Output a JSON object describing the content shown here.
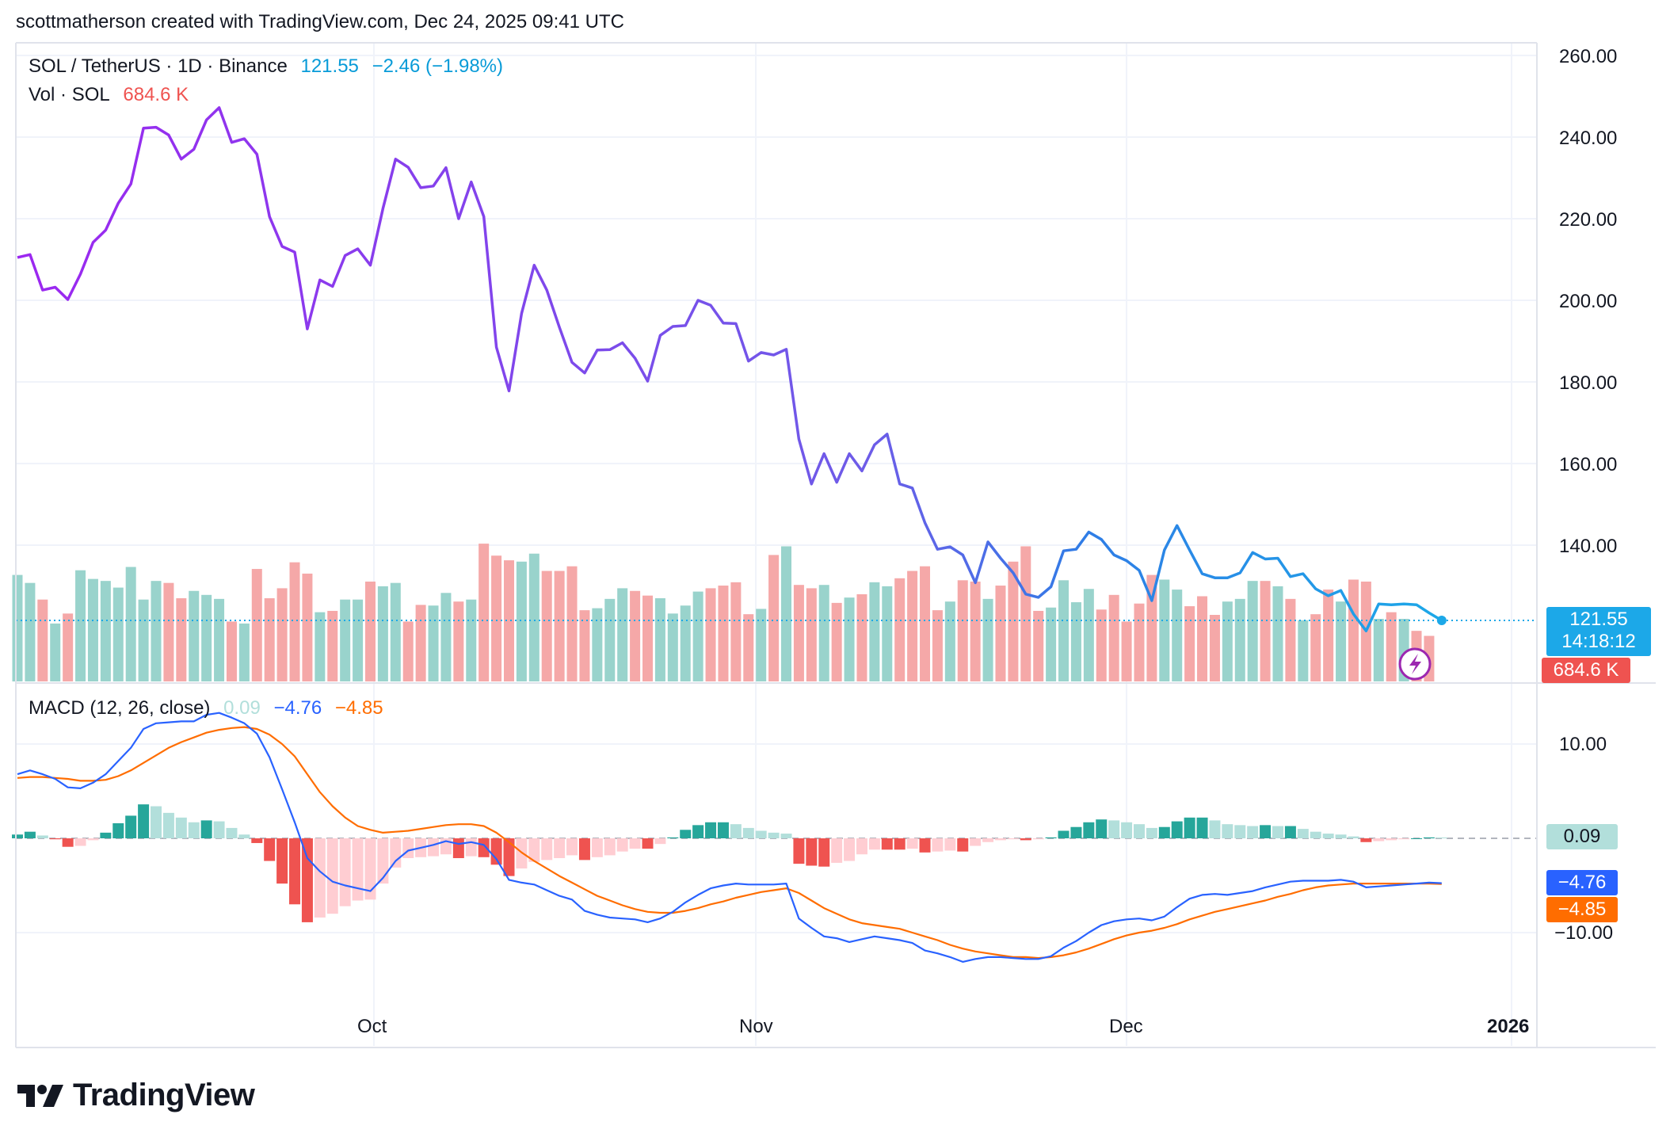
{
  "header": {
    "attribution": "scottmatherson created with TradingView.com, Dec 24, 2025 09:41 UTC"
  },
  "legend": {
    "symbol": "SOL / TetherUS · 1D · Binance",
    "last_price": "121.55",
    "change": "−2.46 (−1.98%)",
    "volume_label": "Vol · SOL",
    "volume_value": "684.6 K",
    "macd_label": "MACD (12, 26, close)",
    "macd_hist": "0.09",
    "macd_line": "−4.76",
    "macd_signal": "−4.85"
  },
  "price_axis": {
    "ticks": [
      "260.00",
      "240.00",
      "220.00",
      "200.00",
      "180.00",
      "160.00",
      "140.00"
    ],
    "price_tag": "121.55",
    "countdown": "14:18:12",
    "volume_tag": "684.6 K"
  },
  "macd_axis": {
    "ticks": [
      "10.00",
      "−10.00"
    ],
    "hist_tag": "0.09",
    "macd_tag": "−4.76",
    "signal_tag": "−4.85"
  },
  "time_axis": {
    "labels": [
      "Oct",
      "Nov",
      "Dec",
      "2026"
    ]
  },
  "colors": {
    "price_line_start": "#9c27f0",
    "price_line_end": "#2196f3",
    "volume_up": "#99d3cc",
    "volume_down": "#f5a8a8",
    "macd_line": "#2962ff",
    "signal_line": "#ff6d00",
    "hist_up_strong": "#26a69a",
    "hist_up_weak": "#b2dfdb",
    "hist_down_strong": "#ef5350",
    "hist_down_weak": "#ffcdd2",
    "price_tag_bg": "#1ca8e8",
    "volume_tag_bg": "#ef5350"
  },
  "footer": {
    "brand": "TradingView"
  },
  "chart_data": {
    "type": "line",
    "title": "SOL / TetherUS · 1D · Binance",
    "x_start": "2025-09-03",
    "x_end": "2025-12-24",
    "ylim": [
      120,
      260
    ],
    "close": [
      210.5,
      211.2,
      202.5,
      203.2,
      200.2,
      206.4,
      214.2,
      217.2,
      223.8,
      228.5,
      242.2,
      242.4,
      240.5,
      234.6,
      237.0,
      244.2,
      247.2,
      238.7,
      239.6,
      235.8,
      220.5,
      213.2,
      211.8,
      193.0,
      205.0,
      203.4,
      211.0,
      212.6,
      208.6,
      222.5,
      234.6,
      232.6,
      227.6,
      228.0,
      232.5,
      220.0,
      229.0,
      220.5,
      188.5,
      177.8,
      196.8,
      208.6,
      202.5,
      193.4,
      184.8,
      182.2,
      187.8,
      187.9,
      189.6,
      185.8,
      180.2,
      191.4,
      193.6,
      193.8,
      200.0,
      198.8,
      194.4,
      194.3,
      185.1,
      187.2,
      186.6,
      188.0,
      166.0,
      155.0,
      162.4,
      155.4,
      162.4,
      158.2,
      164.6,
      167.2,
      155.0,
      154.0,
      145.5,
      139.0,
      139.6,
      137.6,
      130.8,
      140.8,
      136.8,
      133.2,
      128.0,
      127.2,
      129.8,
      138.6,
      139.0,
      143.2,
      141.4,
      137.6,
      136.2,
      133.8,
      126.4,
      138.8,
      144.8,
      138.8,
      133.0,
      132.0,
      132.0,
      133.2,
      138.2,
      136.6,
      136.8,
      132.3,
      133.0,
      129.3,
      127.6,
      128.9,
      123.1,
      119.0,
      125.6,
      125.4,
      125.6,
      125.4,
      123.4,
      121.55
    ],
    "volume_k": [
      1600,
      1480,
      1230,
      870,
      1020,
      1670,
      1540,
      1510,
      1410,
      1720,
      1230,
      1510,
      1480,
      1250,
      1360,
      1300,
      1240,
      900,
      870,
      1690,
      1250,
      1400,
      1790,
      1620,
      1040,
      1060,
      1230,
      1230,
      1500,
      1430,
      1480,
      900,
      1150,
      1140,
      1330,
      1200,
      1230,
      2070,
      1890,
      1820,
      1800,
      1920,
      1660,
      1660,
      1730,
      1070,
      1100,
      1240,
      1400,
      1360,
      1290,
      1250,
      1020,
      1140,
      1350,
      1400,
      1440,
      1490,
      1010,
      1090,
      1900,
      2030,
      1450,
      1400,
      1450,
      1180,
      1260,
      1310,
      1490,
      1430,
      1550,
      1660,
      1730,
      1070,
      1200,
      1520,
      1500,
      1240,
      1440,
      1800,
      2030,
      1060,
      1110,
      1520,
      1190,
      1390,
      1080,
      1300,
      900,
      1170,
      1600,
      1530,
      1380,
      1130,
      1280,
      1000,
      1200,
      1240,
      1510,
      1510,
      1430,
      1240,
      920,
      1010,
      1380,
      1200,
      1530,
      1500,
      940,
      1040,
      940,
      760,
      684.6
    ],
    "series": [
      {
        "name": "MACD",
        "values": [
          6.8,
          7.2,
          6.8,
          6.3,
          5.4,
          5.3,
          5.9,
          6.8,
          8.2,
          9.6,
          11.6,
          12.2,
          12.3,
          12.4,
          12.4,
          13.1,
          13.3,
          12.8,
          12.2,
          11.1,
          8.6,
          5.2,
          1.7,
          -2.1,
          -3.5,
          -4.6,
          -5.0,
          -5.3,
          -5.6,
          -4.2,
          -2.4,
          -1.3,
          -1.0,
          -0.7,
          -0.3,
          -0.6,
          -0.4,
          -0.7,
          -2.2,
          -4.4,
          -4.7,
          -4.9,
          -5.5,
          -6.1,
          -6.5,
          -7.7,
          -8.1,
          -8.4,
          -8.5,
          -8.6,
          -8.9,
          -8.5,
          -7.8,
          -6.8,
          -6.0,
          -5.3,
          -5.0,
          -4.8,
          -4.9,
          -4.9,
          -4.9,
          -4.8,
          -8.5,
          -9.5,
          -10.4,
          -10.6,
          -11.0,
          -10.7,
          -10.4,
          -10.6,
          -10.8,
          -11.1,
          -11.9,
          -12.2,
          -12.6,
          -13.1,
          -12.8,
          -12.6,
          -12.6,
          -12.7,
          -12.8,
          -12.8,
          -12.5,
          -11.6,
          -10.9,
          -10.0,
          -9.2,
          -8.8,
          -8.6,
          -8.5,
          -8.7,
          -8.3,
          -7.3,
          -6.4,
          -6.0,
          -5.9,
          -6.0,
          -5.8,
          -5.6,
          -5.2,
          -4.9,
          -4.6,
          -4.5,
          -4.5,
          -4.5,
          -4.4,
          -4.6,
          -5.2,
          -5.1,
          -5.0,
          -4.9,
          -4.8,
          -4.7,
          -4.76
        ]
      },
      {
        "name": "Signal",
        "values": [
          6.4,
          6.5,
          6.5,
          6.4,
          6.3,
          6.1,
          6.1,
          6.2,
          6.6,
          7.2,
          8.0,
          8.8,
          9.6,
          10.2,
          10.7,
          11.2,
          11.5,
          11.7,
          11.8,
          11.6,
          11.0,
          10.0,
          8.7,
          6.8,
          4.9,
          3.4,
          2.2,
          1.3,
          0.9,
          0.6,
          0.7,
          0.8,
          1.0,
          1.2,
          1.4,
          1.5,
          1.5,
          1.3,
          0.6,
          -0.4,
          -1.5,
          -2.4,
          -3.2,
          -4.0,
          -4.7,
          -5.4,
          -6.1,
          -6.6,
          -7.1,
          -7.5,
          -7.8,
          -7.9,
          -7.9,
          -7.7,
          -7.4,
          -7.0,
          -6.7,
          -6.3,
          -6.0,
          -5.7,
          -5.5,
          -5.3,
          -5.8,
          -6.6,
          -7.4,
          -8.0,
          -8.6,
          -9.0,
          -9.2,
          -9.4,
          -9.6,
          -10.0,
          -10.4,
          -10.8,
          -11.3,
          -11.7,
          -12.0,
          -12.2,
          -12.4,
          -12.6,
          -12.6,
          -12.7,
          -12.6,
          -12.4,
          -12.1,
          -11.7,
          -11.2,
          -10.7,
          -10.3,
          -10.0,
          -9.8,
          -9.5,
          -9.1,
          -8.6,
          -8.2,
          -7.8,
          -7.5,
          -7.2,
          -6.9,
          -6.6,
          -6.2,
          -5.9,
          -5.5,
          -5.2,
          -5.0,
          -4.9,
          -4.8,
          -4.8,
          -4.8,
          -4.8,
          -4.8,
          -4.8,
          -4.8,
          -4.85
        ]
      },
      {
        "name": "Histogram",
        "values": [
          0.4,
          0.7,
          0.3,
          -0.1,
          -0.9,
          -0.8,
          -0.2,
          0.6,
          1.6,
          2.4,
          3.6,
          3.4,
          2.7,
          2.2,
          1.7,
          1.9,
          1.8,
          1.1,
          0.4,
          -0.5,
          -2.4,
          -4.8,
          -7.0,
          -8.9,
          -8.4,
          -8.0,
          -7.2,
          -6.6,
          -6.5,
          -4.8,
          -3.1,
          -2.1,
          -2.0,
          -1.9,
          -1.7,
          -2.1,
          -1.9,
          -2.0,
          -2.8,
          -4.0,
          -3.2,
          -2.5,
          -2.3,
          -2.1,
          -1.8,
          -2.3,
          -2.0,
          -1.8,
          -1.4,
          -1.1,
          -1.1,
          -0.6,
          0.1,
          0.9,
          1.4,
          1.7,
          1.7,
          1.5,
          1.1,
          0.8,
          0.6,
          0.5,
          -2.7,
          -2.9,
          -3.0,
          -2.6,
          -2.4,
          -1.7,
          -1.2,
          -1.2,
          -1.2,
          -1.1,
          -1.5,
          -1.4,
          -1.3,
          -1.4,
          -0.8,
          -0.4,
          -0.2,
          -0.1,
          -0.2,
          -0.1,
          0.1,
          0.8,
          1.2,
          1.7,
          2.0,
          1.9,
          1.7,
          1.5,
          1.1,
          1.2,
          1.8,
          2.2,
          2.2,
          1.9,
          1.5,
          1.4,
          1.3,
          1.4,
          1.3,
          1.3,
          1.0,
          0.7,
          0.5,
          0.4,
          0.2,
          -0.4,
          -0.3,
          -0.2,
          -0.1,
          0.0,
          0.1,
          0.09
        ]
      }
    ],
    "macd_ylim": [
      -17,
      17
    ],
    "x_tick_labels": [
      "Oct",
      "Nov",
      "Dec",
      "2026"
    ]
  }
}
